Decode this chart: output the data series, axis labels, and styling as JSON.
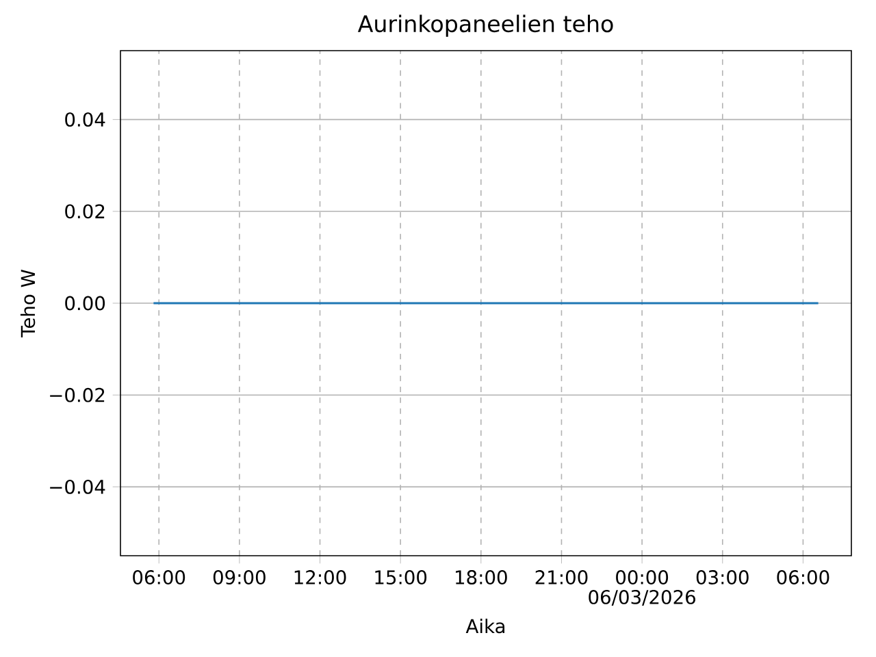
{
  "chart_data": {
    "type": "line",
    "title": "Aurinkopaneelien teho",
    "xlabel": "Aika",
    "ylabel": "Teho W",
    "x": [
      "2026-03-05T05:48",
      "2026-03-06T06:34"
    ],
    "series": [
      {
        "color": "#1f77b4",
        "values": [
          0,
          0
        ]
      }
    ],
    "xlim": [
      "2026-03-05T04:34",
      "2026-03-06T07:48"
    ],
    "xticks": [
      {
        "value": "2026-03-05T06:00",
        "label": "06:00"
      },
      {
        "value": "2026-03-05T09:00",
        "label": "09:00"
      },
      {
        "value": "2026-03-05T12:00",
        "label": "12:00"
      },
      {
        "value": "2026-03-05T15:00",
        "label": "15:00"
      },
      {
        "value": "2026-03-05T18:00",
        "label": "18:00"
      },
      {
        "value": "2026-03-05T21:00",
        "label": "21:00"
      },
      {
        "value": "2026-03-06T00:00",
        "label": "00:00"
      },
      {
        "value": "2026-03-06T03:00",
        "label": "03:00"
      },
      {
        "value": "2026-03-06T06:00",
        "label": "06:00"
      }
    ],
    "ylim": [
      -0.055,
      0.055
    ],
    "yticks": [
      {
        "value": -0.04,
        "label": "−0.04"
      },
      {
        "value": -0.02,
        "label": "−0.02"
      },
      {
        "value": 0,
        "label": "0.00"
      },
      {
        "value": 0.02,
        "label": "0.02"
      },
      {
        "value": 0.04,
        "label": "0.04"
      }
    ],
    "annotations": [
      "06/03/2026"
    ],
    "grid": true,
    "line_style": "solid",
    "marker": "none"
  }
}
